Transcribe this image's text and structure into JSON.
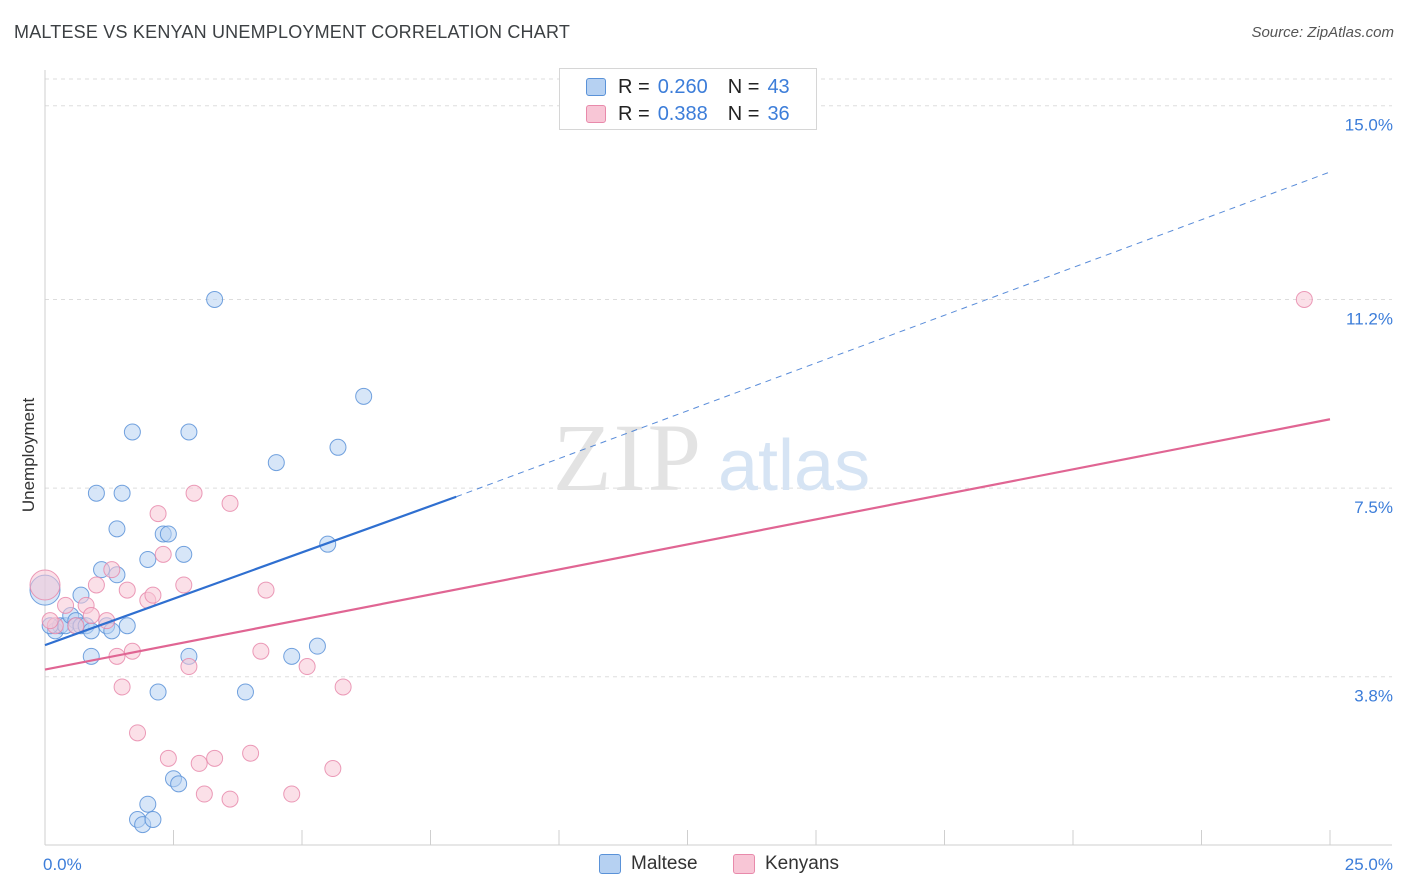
{
  "header": {
    "title": "MALTESE VS KENYAN UNEMPLOYMENT CORRELATION CHART",
    "source": "Source: ZipAtlas.com"
  },
  "watermark": {
    "zip": "ZIP",
    "atlas": "atlas"
  },
  "legend_top": {
    "rows": [
      {
        "r_label": "R =",
        "r_value": "0.260",
        "n_label": "N =",
        "n_value": "43"
      },
      {
        "r_label": "R =",
        "r_value": "0.388",
        "n_label": "N =",
        "n_value": "36"
      }
    ]
  },
  "legend_bottom": {
    "items": [
      {
        "label": "Maltese"
      },
      {
        "label": "Kenyans"
      }
    ]
  },
  "colors": {
    "maltese_fill": "#b6d1f2",
    "maltese_stroke": "#5a92d8",
    "maltese_line": "#2f6fd0",
    "kenyans_fill": "#f8c6d6",
    "kenyans_stroke": "#e88aab",
    "kenyans_line": "#e06593",
    "axis_label": "#3c7dd9",
    "grid": "#dddddd"
  },
  "chart_data": {
    "type": "scatter",
    "title": "MALTESE VS KENYAN UNEMPLOYMENT CORRELATION CHART",
    "xlabel": "",
    "ylabel": "Unemployment",
    "xlim": [
      0,
      25
    ],
    "ylim": [
      0.5,
      15.7
    ],
    "x_tick_labels": [
      "0.0%",
      "25.0%"
    ],
    "y_ticks": [
      3.8,
      7.5,
      11.2,
      15.0
    ],
    "y_tick_labels": [
      "3.8%",
      "7.5%",
      "11.2%",
      "15.0%"
    ],
    "grid": true,
    "legend_position": "top-center",
    "series": [
      {
        "name": "Maltese",
        "R": 0.26,
        "N": 43,
        "points": [
          [
            0.0,
            5.5
          ],
          [
            0.2,
            4.7
          ],
          [
            0.3,
            4.8
          ],
          [
            0.4,
            4.8
          ],
          [
            0.5,
            5.0
          ],
          [
            0.6,
            4.9
          ],
          [
            0.6,
            4.8
          ],
          [
            0.7,
            4.8
          ],
          [
            0.7,
            5.4
          ],
          [
            0.8,
            4.8
          ],
          [
            0.9,
            4.7
          ],
          [
            0.9,
            4.2
          ],
          [
            1.0,
            7.4
          ],
          [
            1.1,
            5.9
          ],
          [
            1.2,
            4.8
          ],
          [
            1.3,
            4.7
          ],
          [
            1.4,
            5.8
          ],
          [
            1.4,
            6.7
          ],
          [
            1.5,
            7.4
          ],
          [
            1.6,
            4.8
          ],
          [
            1.7,
            8.6
          ],
          [
            1.8,
            1.0
          ],
          [
            1.9,
            0.9
          ],
          [
            2.0,
            1.3
          ],
          [
            2.0,
            6.1
          ],
          [
            2.1,
            1.0
          ],
          [
            2.2,
            3.5
          ],
          [
            2.3,
            6.6
          ],
          [
            2.4,
            6.6
          ],
          [
            2.5,
            1.8
          ],
          [
            2.6,
            1.7
          ],
          [
            2.7,
            6.2
          ],
          [
            2.8,
            4.2
          ],
          [
            2.8,
            8.6
          ],
          [
            3.3,
            11.2
          ],
          [
            3.9,
            3.5
          ],
          [
            4.5,
            8.0
          ],
          [
            4.8,
            4.2
          ],
          [
            5.3,
            4.4
          ],
          [
            5.5,
            6.4
          ],
          [
            5.7,
            8.3
          ],
          [
            6.2,
            9.3
          ],
          [
            0.1,
            4.8
          ]
        ],
        "fit_line": {
          "x0": 0.0,
          "y0": 4.42,
          "x1": 8.0,
          "y1": 7.33,
          "extend_to_x": 25.0,
          "extend_to_y": 13.7
        }
      },
      {
        "name": "Kenyans",
        "R": 0.388,
        "N": 36,
        "points": [
          [
            0.0,
            5.6
          ],
          [
            0.2,
            4.8
          ],
          [
            0.4,
            5.2
          ],
          [
            0.6,
            4.8
          ],
          [
            0.8,
            5.2
          ],
          [
            0.9,
            5.0
          ],
          [
            1.0,
            5.6
          ],
          [
            1.2,
            4.9
          ],
          [
            1.3,
            5.9
          ],
          [
            1.4,
            4.2
          ],
          [
            1.5,
            3.6
          ],
          [
            1.6,
            5.5
          ],
          [
            1.7,
            4.3
          ],
          [
            1.8,
            2.7
          ],
          [
            2.0,
            5.3
          ],
          [
            2.1,
            5.4
          ],
          [
            2.2,
            7.0
          ],
          [
            2.3,
            6.2
          ],
          [
            2.4,
            2.2
          ],
          [
            2.7,
            5.6
          ],
          [
            2.8,
            4.0
          ],
          [
            2.9,
            7.4
          ],
          [
            3.0,
            2.1
          ],
          [
            3.1,
            1.5
          ],
          [
            3.3,
            2.2
          ],
          [
            3.6,
            1.4
          ],
          [
            3.6,
            7.2
          ],
          [
            4.0,
            2.3
          ],
          [
            4.2,
            4.3
          ],
          [
            4.3,
            5.5
          ],
          [
            4.8,
            1.5
          ],
          [
            5.1,
            4.0
          ],
          [
            5.6,
            2.0
          ],
          [
            5.8,
            3.6
          ],
          [
            24.5,
            11.2
          ],
          [
            0.1,
            4.9
          ]
        ],
        "fit_line": {
          "x0": 0.0,
          "y0": 3.94,
          "x1": 25.0,
          "y1": 8.85
        }
      }
    ]
  }
}
